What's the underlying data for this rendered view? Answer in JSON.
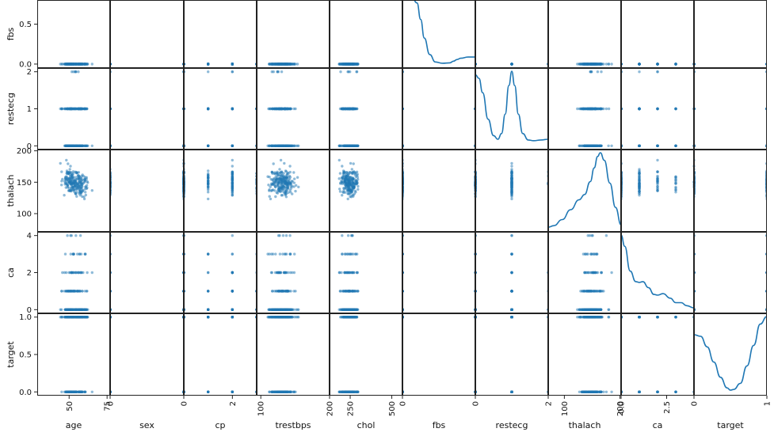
{
  "chart_data": {
    "type": "scatter",
    "title": "",
    "variables": [
      "fbs",
      "restecg",
      "thalach",
      "ca",
      "target"
    ],
    "column_labels": [
      "age",
      "sex",
      "cp",
      "trestbps",
      "chol",
      "fbs",
      "restecg",
      "thalach",
      "ca",
      "target"
    ],
    "row_labels": [
      "fbs",
      "restecg",
      "thalach",
      "ca",
      "target"
    ],
    "column_ticks": [
      {
        "x": "age",
        "values": [
          50,
          75
        ],
        "labels": [
          "50",
          "75"
        ]
      },
      {
        "x": "sex",
        "values": [
          0
        ],
        "labels": [
          "0"
        ]
      },
      {
        "x": "cp",
        "values": [
          0,
          2
        ],
        "labels": [
          "0",
          "2"
        ]
      },
      {
        "x": "trestbps",
        "values": [
          100,
          200
        ],
        "labels": [
          "100",
          "200"
        ]
      },
      {
        "x": "chol",
        "values": [
          250,
          500
        ],
        "labels": [
          "250",
          "500"
        ]
      },
      {
        "x": "fbs",
        "values": [
          0
        ],
        "labels": [
          "0"
        ]
      },
      {
        "x": "restecg",
        "values": [
          0,
          2
        ],
        "labels": [
          "0",
          "2"
        ]
      },
      {
        "x": "thalach",
        "values": [
          100,
          200
        ],
        "labels": [
          "100",
          "200"
        ]
      },
      {
        "x": "ca",
        "values": [
          0,
          2.5
        ],
        "labels": [
          "0.0",
          "2.5"
        ]
      },
      {
        "x": "target",
        "values": [
          0,
          1
        ],
        "labels": [
          "0",
          "1"
        ]
      }
    ],
    "row_ticks": [
      {
        "y": "fbs",
        "values": [
          0.0,
          0.5
        ],
        "labels": [
          "0.0",
          "0.5"
        ]
      },
      {
        "y": "restecg",
        "values": [
          0,
          1,
          2
        ],
        "labels": [
          "0",
          "1",
          "2"
        ]
      },
      {
        "y": "thalach",
        "values": [
          100,
          150,
          200
        ],
        "labels": [
          "100",
          "150",
          "200"
        ]
      },
      {
        "y": "ca",
        "values": [
          0,
          2,
          4
        ],
        "labels": [
          "0",
          "2",
          "4"
        ]
      },
      {
        "y": "target",
        "values": [
          0.0,
          0.5,
          1.0
        ],
        "labels": [
          "0.0",
          "0.5",
          "1.0"
        ]
      }
    ],
    "diagonal_kde": [
      {
        "var": "fbs",
        "column": "fbs",
        "x": [
          -0.5,
          -0.3,
          -0.1,
          0.0,
          0.1,
          0.25,
          0.4,
          0.6,
          0.8,
          0.9,
          1.0,
          1.1,
          1.3,
          1.5
        ],
        "density": [
          1.8,
          1.8,
          1.5,
          1.1,
          0.65,
          0.25,
          0.07,
          0.04,
          0.05,
          0.09,
          0.13,
          0.16,
          0.19,
          0.19
        ]
      },
      {
        "var": "restecg",
        "column": "restecg",
        "x": [
          0.0,
          0.1,
          0.2,
          0.35,
          0.5,
          0.62,
          0.72,
          0.82,
          0.92,
          1.0,
          1.08,
          1.18,
          1.3,
          1.45,
          1.6,
          1.8,
          2.0
        ],
        "density": [
          1.0,
          0.95,
          0.75,
          0.38,
          0.15,
          0.1,
          0.18,
          0.45,
          0.85,
          1.05,
          0.85,
          0.45,
          0.18,
          0.09,
          0.08,
          0.09,
          0.1
        ]
      },
      {
        "var": "thalach",
        "column": "thalach",
        "x": [
          70,
          80,
          95,
          110,
          125,
          135,
          145,
          152,
          158,
          163,
          170,
          180,
          190,
          200
        ],
        "density": [
          0.02,
          0.04,
          0.12,
          0.25,
          0.38,
          0.45,
          0.62,
          0.8,
          0.95,
          1.0,
          0.9,
          0.6,
          0.28,
          0.05
        ]
      },
      {
        "var": "ca",
        "column": "ca",
        "x": [
          0.0,
          0.2,
          0.5,
          0.8,
          1.0,
          1.2,
          1.5,
          1.8,
          2.0,
          2.3,
          2.7,
          3.0,
          3.3,
          3.6,
          4.0
        ],
        "density": [
          1.0,
          0.85,
          0.52,
          0.38,
          0.37,
          0.38,
          0.3,
          0.21,
          0.2,
          0.22,
          0.16,
          0.1,
          0.1,
          0.06,
          0.03
        ]
      },
      {
        "var": "target",
        "column": "target",
        "x": [
          -0.05,
          0.05,
          0.15,
          0.25,
          0.35,
          0.45,
          0.5,
          0.55,
          0.65,
          0.75,
          0.85,
          0.95,
          1.05
        ],
        "density": [
          0.76,
          0.74,
          0.6,
          0.4,
          0.2,
          0.06,
          0.03,
          0.04,
          0.12,
          0.35,
          0.62,
          0.9,
          1.0
        ]
      }
    ],
    "notes": "Pairwise scatter matrix of heart-disease features. Scatter points in off-diagonal panels are too numerous to list individually; columns age, sex, cp, trestbps and chol are partially visible."
  }
}
